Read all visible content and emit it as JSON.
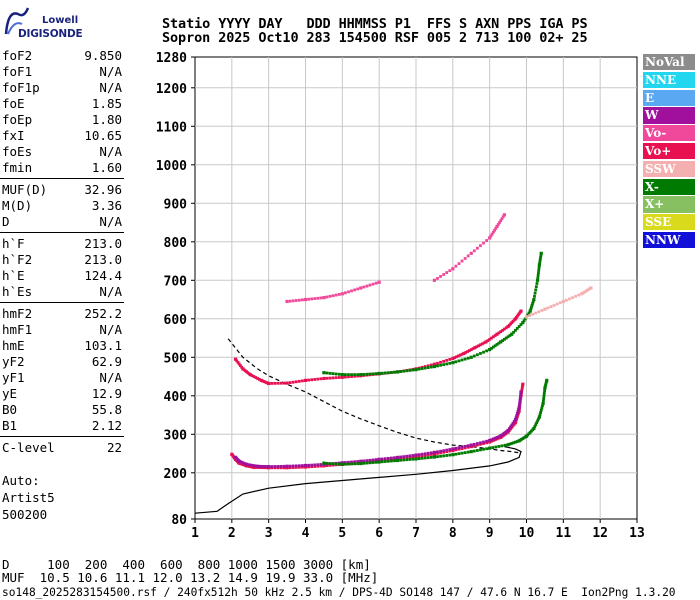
{
  "logo": {
    "line1": "Lowell",
    "line2": "DIGISONDE"
  },
  "header": {
    "line1": "Statio YYYY DAY   DDD HHMMSS P1  FFS S AXN PPS IGA PS",
    "line2": "Sopron 2025 Oct10 283 154500 RSF 005 2 713 100 02+ 25"
  },
  "params": {
    "group1": [
      {
        "name": "foF2",
        "value": "9.850"
      },
      {
        "name": "foF1",
        "value": "N/A"
      },
      {
        "name": "foF1p",
        "value": "N/A"
      },
      {
        "name": "foE",
        "value": "1.85"
      },
      {
        "name": "foEp",
        "value": "1.80"
      },
      {
        "name": "fxI",
        "value": "10.65"
      },
      {
        "name": "foEs",
        "value": "N/A"
      },
      {
        "name": "fmin",
        "value": "1.60"
      }
    ],
    "group2": [
      {
        "name": "MUF(D)",
        "value": "32.96"
      },
      {
        "name": "M(D)",
        "value": "3.36"
      },
      {
        "name": "D",
        "value": "N/A"
      }
    ],
    "group3": [
      {
        "name": "h`F",
        "value": "213.0"
      },
      {
        "name": "h`F2",
        "value": "213.0"
      },
      {
        "name": "h`E",
        "value": "124.4"
      },
      {
        "name": "h`Es",
        "value": "N/A"
      }
    ],
    "group4": [
      {
        "name": "hmF2",
        "value": "252.2"
      },
      {
        "name": "hmF1",
        "value": "N/A"
      },
      {
        "name": "hmE",
        "value": "103.1"
      },
      {
        "name": "yF2",
        "value": "62.9"
      },
      {
        "name": "yF1",
        "value": "N/A"
      },
      {
        "name": "yE",
        "value": "12.9"
      },
      {
        "name": "B0",
        "value": "55.8"
      },
      {
        "name": "B1",
        "value": "2.12"
      }
    ],
    "group5": [
      {
        "name": "C-level",
        "value": "22"
      }
    ]
  },
  "auto": {
    "line1": "Auto:",
    "line2": "Artist5",
    "line3": "500200"
  },
  "legend": [
    {
      "label": "NoVal",
      "color": "#8c8c8c"
    },
    {
      "label": "NNE",
      "color": "#22d6f0"
    },
    {
      "label": "E",
      "color": "#5aa8f2"
    },
    {
      "label": "W",
      "color": "#a0109c"
    },
    {
      "label": "Vo-",
      "color": "#f0489a"
    },
    {
      "label": "Vo+",
      "color": "#e81050"
    },
    {
      "label": "SSW",
      "color": "#f4b0b0"
    },
    {
      "label": "X-",
      "color": "#007a00"
    },
    {
      "label": "X+",
      "color": "#86c060"
    },
    {
      "label": "SSE",
      "color": "#dada1c"
    },
    {
      "label": "NNW",
      "color": "#1010d8"
    }
  ],
  "footer": {
    "line1": "D     100  200  400  600  800 1000 1500 3000 [km]",
    "line2": "MUF  10.5 10.6 11.1 12.0 13.2 14.9 19.9 33.0 [MHz]",
    "line3": "so148_2025283154500.rsf / 240fx512h 50 kHz 2.5 km / DPS-4D SO148 147 / 47.6 N 16.7 E  Ion2Png 1.3.20"
  },
  "chart_data": {
    "type": "scatter",
    "xlim": [
      1,
      13
    ],
    "ylim": [
      80,
      1280
    ],
    "x_ticks": [
      1,
      2,
      3,
      4,
      5,
      6,
      7,
      8,
      9,
      10,
      11,
      12,
      13
    ],
    "y_ticks": [
      80,
      200,
      300,
      400,
      500,
      600,
      700,
      800,
      900,
      1000,
      1100,
      1200,
      1280
    ],
    "grid": true,
    "series": [
      {
        "name": "Vo+",
        "color": "#e81050",
        "points": [
          [
            2.0,
            248
          ],
          [
            2.1,
            235
          ],
          [
            2.2,
            225
          ],
          [
            2.4,
            218
          ],
          [
            2.6,
            214
          ],
          [
            3.0,
            213
          ],
          [
            3.5,
            213
          ],
          [
            4.0,
            215
          ],
          [
            4.5,
            218
          ],
          [
            5.0,
            222
          ],
          [
            5.5,
            226
          ],
          [
            6.0,
            231
          ],
          [
            6.5,
            236
          ],
          [
            7.0,
            242
          ],
          [
            7.5,
            249
          ],
          [
            8.0,
            258
          ],
          [
            8.5,
            268
          ],
          [
            9.0,
            280
          ],
          [
            9.3,
            292
          ],
          [
            9.5,
            306
          ],
          [
            9.7,
            330
          ],
          [
            9.8,
            360
          ],
          [
            9.85,
            400
          ],
          [
            9.9,
            430
          ]
        ]
      },
      {
        "name": "W",
        "color": "#a0109c",
        "points": [
          [
            2.1,
            240
          ],
          [
            2.2,
            230
          ],
          [
            2.4,
            222
          ],
          [
            2.7,
            217
          ],
          [
            3.0,
            216
          ],
          [
            3.5,
            217
          ],
          [
            4.0,
            219
          ],
          [
            4.5,
            222
          ],
          [
            5.0,
            226
          ],
          [
            5.5,
            230
          ],
          [
            6.0,
            235
          ],
          [
            6.5,
            240
          ],
          [
            7.0,
            246
          ],
          [
            7.5,
            253
          ],
          [
            8.0,
            262
          ],
          [
            8.5,
            272
          ],
          [
            9.0,
            284
          ],
          [
            9.3,
            296
          ],
          [
            9.5,
            310
          ],
          [
            9.7,
            338
          ],
          [
            9.8,
            370
          ],
          [
            9.85,
            410
          ]
        ]
      },
      {
        "name": "X-",
        "color": "#007a00",
        "points": [
          [
            4.5,
            225
          ],
          [
            5.0,
            222
          ],
          [
            5.5,
            224
          ],
          [
            6.0,
            228
          ],
          [
            6.5,
            232
          ],
          [
            7.0,
            236
          ],
          [
            7.5,
            241
          ],
          [
            8.0,
            247
          ],
          [
            8.5,
            255
          ],
          [
            9.0,
            264
          ],
          [
            9.5,
            273
          ],
          [
            9.8,
            283
          ],
          [
            10.0,
            295
          ],
          [
            10.2,
            315
          ],
          [
            10.35,
            345
          ],
          [
            10.45,
            380
          ],
          [
            10.5,
            420
          ],
          [
            10.55,
            440
          ]
        ]
      },
      {
        "name": "Vo+",
        "color": "#e81050",
        "points": [
          [
            2.1,
            495
          ],
          [
            2.3,
            470
          ],
          [
            2.5,
            455
          ],
          [
            2.8,
            440
          ],
          [
            3.0,
            432
          ],
          [
            3.5,
            433
          ],
          [
            4.0,
            440
          ],
          [
            4.5,
            445
          ],
          [
            5.0,
            448
          ],
          [
            5.5,
            452
          ],
          [
            6.0,
            457
          ],
          [
            6.5,
            462
          ],
          [
            7.0,
            470
          ],
          [
            7.5,
            482
          ],
          [
            8.0,
            497
          ],
          [
            8.3,
            510
          ],
          [
            8.6,
            525
          ],
          [
            8.9,
            540
          ],
          [
            9.2,
            560
          ],
          [
            9.5,
            580
          ],
          [
            9.7,
            600
          ],
          [
            9.85,
            620
          ]
        ]
      },
      {
        "name": "X-",
        "color": "#007a00",
        "points": [
          [
            4.5,
            460
          ],
          [
            5.0,
            455
          ],
          [
            5.5,
            455
          ],
          [
            6.0,
            458
          ],
          [
            6.5,
            462
          ],
          [
            7.0,
            468
          ],
          [
            7.5,
            476
          ],
          [
            8.0,
            486
          ],
          [
            8.5,
            500
          ],
          [
            9.0,
            520
          ],
          [
            9.3,
            540
          ],
          [
            9.6,
            560
          ],
          [
            9.9,
            590
          ],
          [
            10.1,
            620
          ],
          [
            10.2,
            650
          ],
          [
            10.3,
            700
          ],
          [
            10.35,
            740
          ],
          [
            10.4,
            770
          ]
        ]
      },
      {
        "name": "SSW",
        "color": "#f4b0b0",
        "points": [
          [
            10.0,
            605
          ],
          [
            10.5,
            625
          ],
          [
            11.0,
            645
          ],
          [
            11.5,
            665
          ],
          [
            11.75,
            680
          ]
        ]
      },
      {
        "name": "Vo-",
        "color": "#f0489a",
        "points": [
          [
            3.5,
            645
          ],
          [
            4.0,
            650
          ],
          [
            4.5,
            655
          ],
          [
            5.0,
            665
          ],
          [
            5.5,
            680
          ],
          [
            6.0,
            695
          ]
        ]
      },
      {
        "name": "Vo-",
        "color": "#f0489a",
        "points": [
          [
            7.5,
            700
          ],
          [
            8.0,
            730
          ],
          [
            8.5,
            770
          ],
          [
            9.0,
            810
          ],
          [
            9.2,
            840
          ],
          [
            9.4,
            870
          ]
        ]
      }
    ],
    "reference_curves": [
      {
        "style": "solid",
        "points": [
          [
            1.0,
            95
          ],
          [
            1.6,
            100
          ],
          [
            1.9,
            120
          ],
          [
            2.3,
            145
          ],
          [
            3.0,
            160
          ],
          [
            4.0,
            172
          ],
          [
            5.0,
            180
          ],
          [
            6.0,
            188
          ],
          [
            7.0,
            196
          ],
          [
            8.0,
            206
          ],
          [
            9.0,
            218
          ],
          [
            9.5,
            228
          ],
          [
            9.8,
            240
          ],
          [
            9.85,
            255
          ],
          [
            9.7,
            262
          ],
          [
            9.4,
            268
          ]
        ]
      },
      {
        "style": "dashed",
        "points": [
          [
            1.9,
            548
          ],
          [
            2.3,
            500
          ],
          [
            2.7,
            470
          ],
          [
            3.0,
            452
          ],
          [
            3.5,
            430
          ],
          [
            4.0,
            410
          ],
          [
            4.5,
            385
          ],
          [
            5.0,
            360
          ],
          [
            5.5,
            340
          ],
          [
            6.0,
            322
          ],
          [
            6.5,
            305
          ],
          [
            7.0,
            290
          ],
          [
            7.5,
            280
          ],
          [
            8.0,
            272
          ],
          [
            8.5,
            268
          ],
          [
            9.0,
            262
          ],
          [
            9.3,
            258
          ],
          [
            9.6,
            255
          ],
          [
            9.8,
            252
          ]
        ]
      }
    ]
  }
}
